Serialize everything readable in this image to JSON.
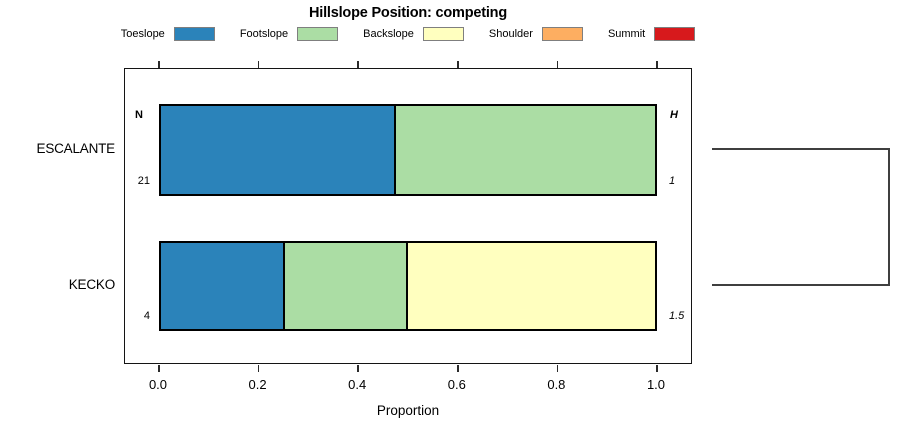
{
  "title": "Hillslope Position: competing",
  "legend": {
    "items": [
      {
        "label": "Toeslope",
        "color": "#2B83BA"
      },
      {
        "label": "Footslope",
        "color": "#ABDDA4"
      },
      {
        "label": "Backslope",
        "color": "#FFFFBF"
      },
      {
        "label": "Shoulder",
        "color": "#FDAE61"
      },
      {
        "label": "Summit",
        "color": "#D7191C"
      }
    ]
  },
  "chart_data": {
    "type": "bar",
    "orientation": "horizontal-stacked",
    "title": "Hillslope Position: competing",
    "categories": [
      "ESCALANTE",
      "KECKO"
    ],
    "series": [
      {
        "name": "Toeslope",
        "color": "#2B83BA",
        "values": [
          0.476,
          0.25
        ]
      },
      {
        "name": "Footslope",
        "color": "#ABDDA4",
        "values": [
          0.524,
          0.25
        ]
      },
      {
        "name": "Backslope",
        "color": "#FFFFBF",
        "values": [
          0,
          0.5
        ]
      },
      {
        "name": "Shoulder",
        "color": "#FDAE61",
        "values": [
          0,
          0
        ]
      },
      {
        "name": "Summit",
        "color": "#D7191C",
        "values": [
          0,
          0
        ]
      }
    ],
    "annotations": {
      "n_header": "N",
      "h_header": "H",
      "n_values": [
        "21",
        "4"
      ],
      "h_values": [
        "1",
        "1.5"
      ]
    },
    "xlabel": "Proportion",
    "x_ticks": [
      "0.0",
      "0.2",
      "0.4",
      "0.6",
      "0.8",
      "1.0"
    ],
    "xlim": [
      0,
      1
    ],
    "grid": false,
    "legend_position": "top",
    "dendrogram_join": true
  }
}
